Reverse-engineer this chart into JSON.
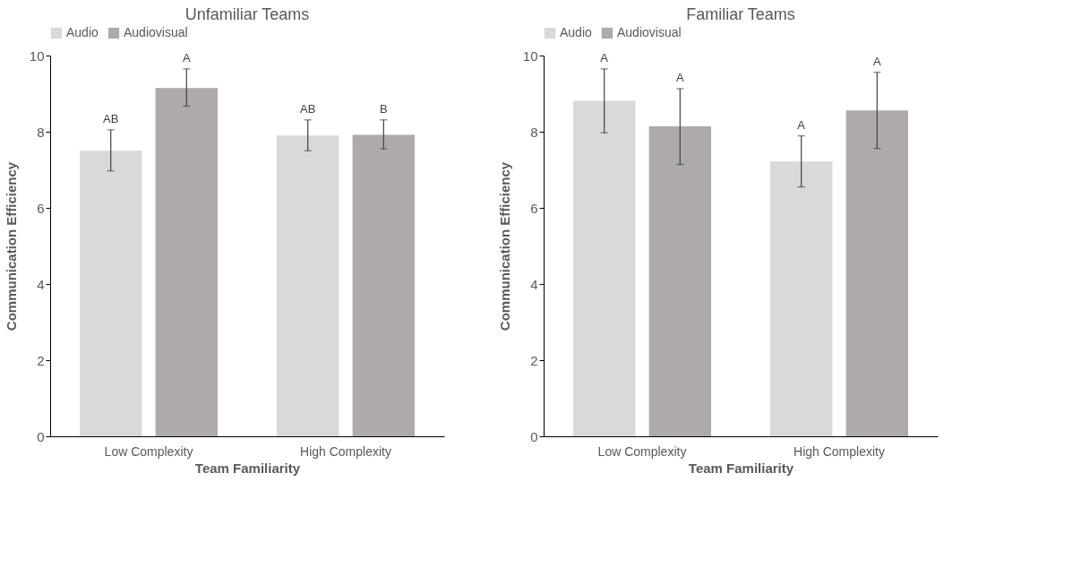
{
  "chart_data": [
    {
      "type": "bar",
      "title": "Unfamiliar Teams",
      "xlabel": "Team Familiarity",
      "ylabel": "Communication Efficiency",
      "categories": [
        "Low Complexity",
        "High Complexity"
      ],
      "series": [
        {
          "name": "Audio",
          "color": "#d9d9d9",
          "values": [
            7.5,
            7.9
          ],
          "errors": [
            [
              6.97,
              8.05
            ],
            [
              7.5,
              8.31
            ]
          ],
          "value_labels": [
            "AB",
            "AB"
          ]
        },
        {
          "name": "Audiovisual",
          "color": "#aeaaaa",
          "values": [
            9.15,
            7.92
          ],
          "errors": [
            [
              8.67,
              9.65
            ],
            [
              7.55,
              8.31
            ]
          ],
          "value_labels": [
            "A",
            "B"
          ]
        }
      ],
      "ylim": [
        0,
        10
      ],
      "yticks": [
        0,
        2,
        4,
        6,
        8,
        10
      ],
      "grid": false,
      "legend": "top"
    },
    {
      "type": "bar",
      "title": "Familiar Teams",
      "xlabel": "Team Familiarity",
      "ylabel": "Communication Efficiency",
      "categories": [
        "Low Complexity",
        "High Complexity"
      ],
      "series": [
        {
          "name": "Audio",
          "color": "#d9d9d9",
          "values": [
            8.81,
            7.22
          ],
          "errors": [
            [
              7.97,
              9.65
            ],
            [
              6.55,
              7.89
            ]
          ]
        },
        {
          "name": "Audiovisual",
          "color": "#aeaaaa",
          "values": [
            8.14,
            8.56
          ],
          "errors": [
            [
              7.14,
              9.13
            ],
            [
              7.56,
              9.56
            ]
          ]
        }
      ],
      "annotations": [
        "A",
        "A",
        "A",
        "A"
      ],
      "ylim": [
        0,
        10
      ],
      "yticks": [
        0,
        2,
        4,
        6,
        8,
        10
      ],
      "grid": false,
      "legend": "top"
    }
  ]
}
